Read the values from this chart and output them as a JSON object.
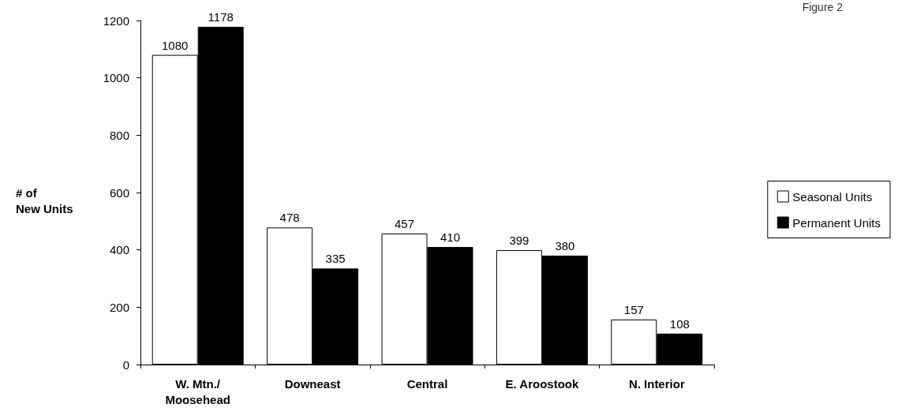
{
  "chart_data": {
    "type": "bar",
    "ylabel": "# of\nNew Units",
    "annotations": [
      "Figure 2"
    ],
    "categories": [
      "W. Mtn./\nMoosehead",
      "Downeast",
      "Central",
      "E. Aroostook",
      "N. Interior"
    ],
    "series": [
      {
        "name": "Seasonal Units",
        "color": "#ffffff",
        "values": [
          1080,
          478,
          457,
          399,
          157
        ]
      },
      {
        "name": "Permanent Units",
        "color": "#000000",
        "values": [
          1178,
          335,
          410,
          380,
          108
        ]
      }
    ],
    "ylim": [
      0,
      1200
    ],
    "yticks": [
      0,
      200,
      400,
      600,
      800,
      1000,
      1200
    ],
    "grid": false,
    "legend": "right",
    "data_labels": true
  }
}
